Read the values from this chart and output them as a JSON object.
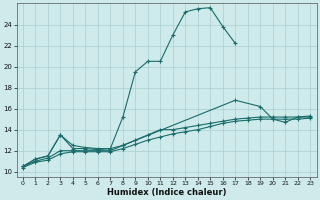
{
  "xlabel": "Humidex (Indice chaleur)",
  "xlim": [
    -0.5,
    23.5
  ],
  "ylim": [
    9.5,
    26
  ],
  "yticks": [
    10,
    12,
    14,
    16,
    18,
    20,
    22,
    24
  ],
  "xticks": [
    0,
    1,
    2,
    3,
    4,
    5,
    6,
    7,
    8,
    9,
    10,
    11,
    12,
    13,
    14,
    15,
    16,
    17,
    18,
    19,
    20,
    21,
    22,
    23
  ],
  "bg_color": "#ceeaea",
  "grid_color": "#aacece",
  "line_color": "#1a6b6b",
  "curve0_x": [
    0,
    1,
    2,
    3,
    4,
    5,
    6,
    7,
    8,
    9,
    10,
    11,
    12,
    13,
    14,
    15,
    16,
    17
  ],
  "curve0_y": [
    10.5,
    11.2,
    11.5,
    13.5,
    12.2,
    12.2,
    12.1,
    12.2,
    15.2,
    19.5,
    20.5,
    20.5,
    23.0,
    25.2,
    25.5,
    25.6,
    23.8,
    22.2
  ],
  "curve1a_x": [
    0,
    1,
    2,
    3,
    4,
    5,
    6,
    7,
    8
  ],
  "curve1a_y": [
    10.5,
    11.2,
    11.5,
    13.5,
    12.5,
    12.3,
    12.2,
    12.2,
    12.5
  ],
  "curve1b_x": [
    8,
    17,
    19,
    20,
    21,
    22,
    23
  ],
  "curve1b_y": [
    12.5,
    16.8,
    16.2,
    15.0,
    14.7,
    15.2,
    15.2
  ],
  "curve2_x": [
    0,
    1,
    2,
    3,
    4,
    5,
    6,
    7,
    8,
    9,
    10,
    11,
    12,
    13,
    14,
    15,
    16,
    17,
    18,
    19,
    20,
    21,
    22,
    23
  ],
  "curve2_y": [
    10.5,
    11.0,
    11.3,
    12.0,
    12.0,
    12.0,
    12.0,
    12.0,
    12.5,
    13.0,
    13.5,
    14.0,
    14.0,
    14.2,
    14.4,
    14.6,
    14.8,
    15.0,
    15.1,
    15.2,
    15.2,
    15.2,
    15.2,
    15.3
  ],
  "curve3_x": [
    0,
    1,
    2,
    3,
    4,
    5,
    6,
    7,
    8,
    9,
    10,
    11,
    12,
    13,
    14,
    15,
    16,
    17,
    18,
    19,
    20,
    21,
    22,
    23
  ],
  "curve3_y": [
    10.4,
    10.9,
    11.1,
    11.7,
    11.9,
    11.9,
    11.9,
    11.9,
    12.2,
    12.6,
    13.0,
    13.3,
    13.6,
    13.8,
    14.0,
    14.3,
    14.6,
    14.8,
    14.9,
    15.0,
    15.0,
    15.0,
    15.0,
    15.1
  ]
}
